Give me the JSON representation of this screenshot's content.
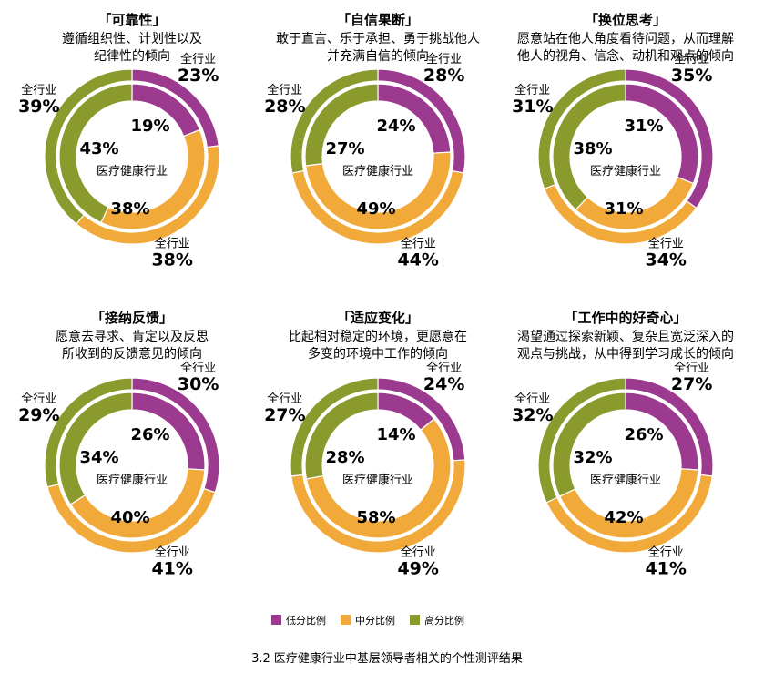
{
  "legend": {
    "low": "低分比例",
    "mid": "中分比例",
    "high": "高分比例"
  },
  "colors": {
    "low": "#9b3a8e",
    "mid": "#f1a93a",
    "high": "#8a9a2c"
  },
  "caption": "3.2 医疗健康行业中基层领导者相关的个性测评结果",
  "chart_data": [
    {
      "type": "pie",
      "title": "「可靠性」",
      "description": [
        "遵循组织性、计划性以及",
        "纪律性的倾向"
      ],
      "center_label": "医疗健康行业",
      "outer_label": "全行业",
      "categories": [
        "低分比例",
        "中分比例",
        "高分比例"
      ],
      "series": [
        {
          "name": "医疗健康行业",
          "values": [
            19,
            38,
            43
          ]
        },
        {
          "name": "全行业",
          "values": [
            23,
            38,
            39
          ]
        }
      ]
    },
    {
      "type": "pie",
      "title": "「自信果断」",
      "description": [
        "敢于直言、乐于承担、勇于挑战他人",
        "并充满自信的倾向"
      ],
      "center_label": "医疗健康行业",
      "outer_label": "全行业",
      "categories": [
        "低分比例",
        "中分比例",
        "高分比例"
      ],
      "series": [
        {
          "name": "医疗健康行业",
          "values": [
            24,
            49,
            27
          ]
        },
        {
          "name": "全行业",
          "values": [
            28,
            44,
            28
          ]
        }
      ]
    },
    {
      "type": "pie",
      "title": "「换位思考」",
      "description": [
        "愿意站在他人角度看待问题，从而理解",
        "他人的视角、信念、动机和观点的倾向"
      ],
      "center_label": "医疗健康行业",
      "outer_label": "全行业",
      "categories": [
        "低分比例",
        "中分比例",
        "高分比例"
      ],
      "series": [
        {
          "name": "医疗健康行业",
          "values": [
            31,
            31,
            38
          ]
        },
        {
          "name": "全行业",
          "values": [
            35,
            34,
            31
          ]
        }
      ]
    },
    {
      "type": "pie",
      "title": "「接纳反馈」",
      "description": [
        "愿意去寻求、肯定以及反思",
        "所收到的反馈意见的倾向"
      ],
      "center_label": "医疗健康行业",
      "outer_label": "全行业",
      "categories": [
        "低分比例",
        "中分比例",
        "高分比例"
      ],
      "series": [
        {
          "name": "医疗健康行业",
          "values": [
            26,
            40,
            34
          ]
        },
        {
          "name": "全行业",
          "values": [
            30,
            41,
            29
          ]
        }
      ]
    },
    {
      "type": "pie",
      "title": "「适应变化」",
      "description": [
        "比起相对稳定的环境，更愿意在",
        "多变的环境中工作的倾向"
      ],
      "center_label": "医疗健康行业",
      "outer_label": "全行业",
      "categories": [
        "低分比例",
        "中分比例",
        "高分比例"
      ],
      "series": [
        {
          "name": "医疗健康行业",
          "values": [
            14,
            58,
            28
          ]
        },
        {
          "name": "全行业",
          "values": [
            24,
            49,
            27
          ]
        }
      ]
    },
    {
      "type": "pie",
      "title": "「工作中的好奇心」",
      "description": [
        "渴望通过探索新颖、复杂且宽泛深入的",
        "观点与挑战，从中得到学习成长的倾向"
      ],
      "center_label": "医疗健康行业",
      "outer_label": "全行业",
      "categories": [
        "低分比例",
        "中分比例",
        "高分比例"
      ],
      "series": [
        {
          "name": "医疗健康行业",
          "values": [
            26,
            42,
            32
          ]
        },
        {
          "name": "全行业",
          "values": [
            27,
            41,
            32
          ]
        }
      ]
    }
  ]
}
